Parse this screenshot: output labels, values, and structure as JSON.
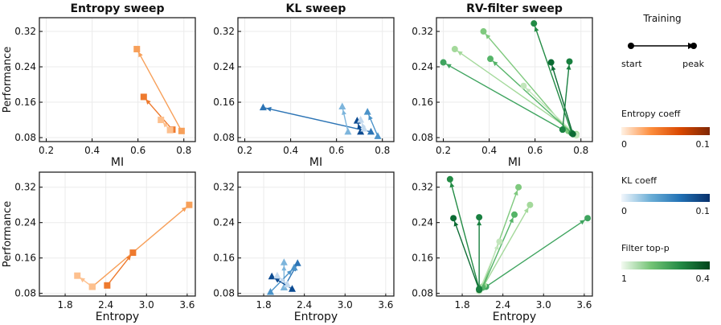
{
  "chart_data": [
    {
      "type": "line",
      "title": "Entropy sweep",
      "xlabel": "MI",
      "ylabel": "Performance",
      "xticks": [
        "0.2",
        "0.4",
        "0.6",
        "0.8"
      ],
      "yticks": [
        "0.32",
        "0.24",
        "0.16",
        "0.08"
      ],
      "xlim": [
        0.17,
        0.85
      ],
      "ylim": [
        0.071,
        0.351
      ],
      "marker": "square",
      "grid": true,
      "runs": [
        {
          "color": "#f7a05a",
          "start": [
            0.79,
            0.095
          ],
          "peak": [
            0.595,
            0.28
          ]
        },
        {
          "color": "#ee7a2e",
          "start": [
            0.75,
            0.098
          ],
          "peak": [
            0.625,
            0.172
          ]
        },
        {
          "color": "#fdc08e",
          "start": [
            0.74,
            0.097
          ],
          "peak": [
            0.7,
            0.12
          ]
        }
      ]
    },
    {
      "type": "line",
      "title": "KL sweep",
      "xlabel": "MI",
      "ylabel": "",
      "xticks": [
        "0.2",
        "0.4",
        "0.6",
        "0.8"
      ],
      "yticks": [
        "0.32",
        "0.24",
        "0.16",
        "0.08"
      ],
      "xlim": [
        0.17,
        0.85
      ],
      "ylim": [
        0.071,
        0.351
      ],
      "marker": "triangle",
      "grid": true,
      "runs": [
        {
          "color": "#2c74b5",
          "start": [
            0.75,
            0.093
          ],
          "peak": [
            0.28,
            0.148
          ]
        },
        {
          "color": "#7db5dc",
          "start": [
            0.65,
            0.093
          ],
          "peak": [
            0.625,
            0.15
          ]
        },
        {
          "color": "#4b93c9",
          "start": [
            0.78,
            0.083
          ],
          "peak": [
            0.735,
            0.138
          ]
        },
        {
          "color": "#0b4a91",
          "start": [
            0.705,
            0.093
          ],
          "peak": [
            0.69,
            0.118
          ]
        },
        {
          "color": "#c3d9ee",
          "start": [
            0.72,
            0.1
          ],
          "peak": [
            0.705,
            0.12
          ]
        }
      ]
    },
    {
      "type": "line",
      "title": "RV-filter sweep",
      "xlabel": "MI",
      "ylabel": "",
      "xticks": [
        "0.2",
        "0.4",
        "0.6",
        "0.8"
      ],
      "yticks": [
        "0.32",
        "0.24",
        "0.16",
        "0.08"
      ],
      "xlim": [
        0.17,
        0.85
      ],
      "ylim": [
        0.071,
        0.351
      ],
      "marker": "circle",
      "grid": true,
      "runs": [
        {
          "color": "#3fa45f",
          "start": [
            0.72,
            0.098
          ],
          "peak": [
            0.2,
            0.25
          ]
        },
        {
          "color": "#a4d99b",
          "start": [
            0.78,
            0.088
          ],
          "peak": [
            0.25,
            0.28
          ]
        },
        {
          "color": "#7fc97e",
          "start": [
            0.745,
            0.095
          ],
          "peak": [
            0.375,
            0.32
          ]
        },
        {
          "color": "#55b468",
          "start": [
            0.76,
            0.09
          ],
          "peak": [
            0.405,
            0.258
          ]
        },
        {
          "color": "#c3e6bc",
          "start": [
            0.78,
            0.085
          ],
          "peak": [
            0.55,
            0.197
          ]
        },
        {
          "color": "#238b45",
          "start": [
            0.76,
            0.09
          ],
          "peak": [
            0.595,
            0.338
          ]
        },
        {
          "color": "#0b6b33",
          "start": [
            0.765,
            0.088
          ],
          "peak": [
            0.67,
            0.25
          ]
        },
        {
          "color": "#198040",
          "start": [
            0.72,
            0.098
          ],
          "peak": [
            0.75,
            0.252
          ]
        }
      ]
    },
    {
      "type": "line",
      "title": "",
      "xlabel": "Entropy",
      "ylabel": "Performance",
      "xticks": [
        "1.8",
        "2.4",
        "3.0",
        "3.6"
      ],
      "yticks": [
        "0.32",
        "0.24",
        "0.16",
        "0.08"
      ],
      "xlim": [
        1.42,
        3.72
      ],
      "ylim": [
        0.074,
        0.354
      ],
      "marker": "square",
      "grid": true,
      "runs": [
        {
          "color": "#f7a05a",
          "start": [
            2.2,
            0.095
          ],
          "peak": [
            3.63,
            0.28
          ]
        },
        {
          "color": "#ee7a2e",
          "start": [
            2.42,
            0.098
          ],
          "peak": [
            2.8,
            0.172
          ]
        },
        {
          "color": "#fdc08e",
          "start": [
            2.2,
            0.095
          ],
          "peak": [
            1.98,
            0.12
          ]
        }
      ]
    },
    {
      "type": "line",
      "title": "",
      "xlabel": "Entropy",
      "ylabel": "",
      "xticks": [
        "1.8",
        "2.4",
        "3.0",
        "3.6"
      ],
      "yticks": [
        "0.32",
        "0.24",
        "0.16",
        "0.08"
      ],
      "xlim": [
        1.42,
        3.72
      ],
      "ylim": [
        0.074,
        0.354
      ],
      "marker": "triangle",
      "grid": true,
      "runs": [
        {
          "color": "#2c74b5",
          "start": [
            2.1,
            0.093
          ],
          "peak": [
            2.3,
            0.148
          ]
        },
        {
          "color": "#7db5dc",
          "start": [
            2.1,
            0.093
          ],
          "peak": [
            2.1,
            0.15
          ]
        },
        {
          "color": "#4b93c9",
          "start": [
            1.9,
            0.083
          ],
          "peak": [
            2.25,
            0.138
          ]
        },
        {
          "color": "#0b4a91",
          "start": [
            2.22,
            0.09
          ],
          "peak": [
            1.92,
            0.118
          ]
        },
        {
          "color": "#c3d9ee",
          "start": [
            2.15,
            0.1
          ],
          "peak": [
            2.0,
            0.12
          ]
        }
      ]
    },
    {
      "type": "line",
      "title": "",
      "xlabel": "Entropy",
      "ylabel": "",
      "xticks": [
        "1.8",
        "2.4",
        "3.0",
        "3.6"
      ],
      "yticks": [
        "0.32",
        "0.24",
        "0.16",
        "0.08"
      ],
      "xlim": [
        1.42,
        3.72
      ],
      "ylim": [
        0.074,
        0.354
      ],
      "marker": "circle",
      "grid": true,
      "runs": [
        {
          "color": "#3fa45f",
          "start": [
            2.15,
            0.095
          ],
          "peak": [
            3.65,
            0.25
          ]
        },
        {
          "color": "#a4d99b",
          "start": [
            2.12,
            0.098
          ],
          "peak": [
            2.8,
            0.28
          ]
        },
        {
          "color": "#7fc97e",
          "start": [
            2.1,
            0.095
          ],
          "peak": [
            2.63,
            0.32
          ]
        },
        {
          "color": "#55b468",
          "start": [
            2.1,
            0.093
          ],
          "peak": [
            2.57,
            0.258
          ]
        },
        {
          "color": "#c3e6bc",
          "start": [
            2.05,
            0.085
          ],
          "peak": [
            2.35,
            0.197
          ]
        },
        {
          "color": "#238b45",
          "start": [
            2.05,
            0.09
          ],
          "peak": [
            1.62,
            0.338
          ]
        },
        {
          "color": "#0b6b33",
          "start": [
            2.05,
            0.088
          ],
          "peak": [
            1.67,
            0.25
          ]
        },
        {
          "color": "#198040",
          "start": [
            2.05,
            0.09
          ],
          "peak": [
            2.05,
            0.252
          ]
        }
      ]
    }
  ],
  "legend": {
    "training_title": "Training",
    "start_label": "start",
    "peak_label": "peak",
    "colorbars": [
      {
        "title": "Entropy coeff",
        "min_label": "0",
        "max_label": "0.1",
        "colors": [
          "#fff1e4",
          "#fd8d3c",
          "#d94801",
          "#7f2704"
        ]
      },
      {
        "title": "KL coeff",
        "min_label": "0",
        "max_label": "0.1",
        "colors": [
          "#f1f6fc",
          "#6baed6",
          "#2171b5",
          "#08306b"
        ]
      },
      {
        "title": "Filter top-p",
        "min_label": "1",
        "max_label": "0.4",
        "colors": [
          "#f3faf0",
          "#74c476",
          "#238b45",
          "#00441b"
        ]
      }
    ]
  }
}
